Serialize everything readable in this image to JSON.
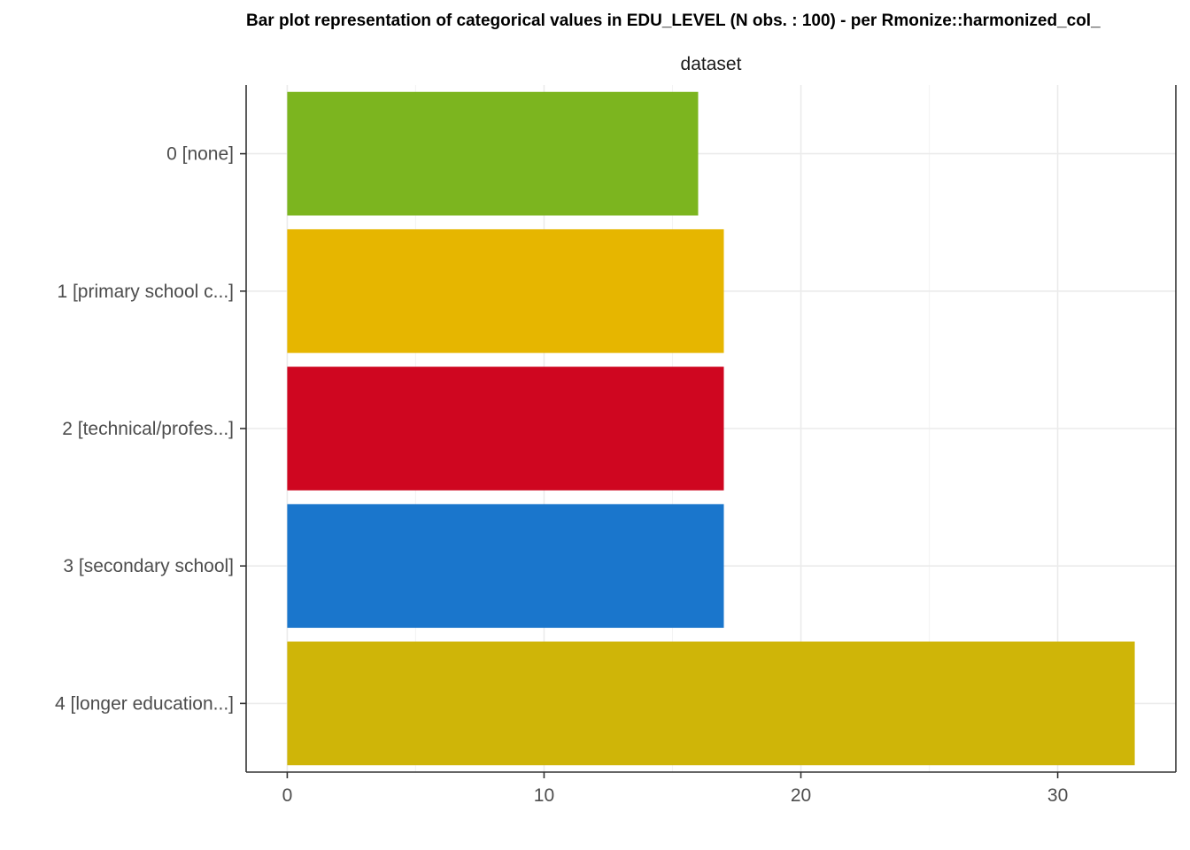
{
  "chart_data": {
    "type": "bar",
    "orientation": "horizontal",
    "title": "Bar plot representation of categorical values in EDU_LEVEL (N obs. : 100) - per Rmonize::harmonized_col_",
    "panel_label": "dataset",
    "categories": [
      "0 [none]",
      "1 [primary school c...]",
      "2 [technical/profes...]",
      "3 [secondary school]",
      "4 [longer education...]"
    ],
    "values": [
      16,
      17,
      17,
      17,
      33
    ],
    "colors": [
      "#7cb51f",
      "#e6b600",
      "#cf0620",
      "#1a76cc",
      "#cfb508"
    ],
    "xlim": [
      -1.6,
      34.6
    ],
    "xticks": [
      0,
      10,
      20,
      30
    ],
    "xlabel": "",
    "ylabel": "",
    "grid": true,
    "legend": "none"
  }
}
